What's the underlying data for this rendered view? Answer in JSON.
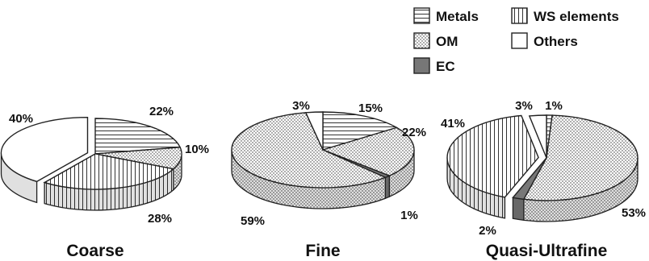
{
  "chart_data": {
    "type": "pie",
    "style": "3d-exploded-grayscale-patterns",
    "legend": {
      "placement": "top-right",
      "entries": [
        {
          "name": "Metals",
          "pattern": "horizontal-lines",
          "color": "#ffffff"
        },
        {
          "name": "WS elements",
          "pattern": "vertical-lines",
          "color": "#ffffff"
        },
        {
          "name": "OM",
          "pattern": "dots",
          "color": "#ffffff"
        },
        {
          "name": "Others",
          "pattern": "none",
          "color": "#ffffff"
        },
        {
          "name": "EC",
          "pattern": "solid",
          "color": "#777777"
        }
      ]
    },
    "charts": [
      {
        "title": "Coarse",
        "slices": [
          {
            "category": "Metals",
            "value": 22,
            "label": "22%"
          },
          {
            "category": "OM",
            "value": 10,
            "label": "10%"
          },
          {
            "category": "WS elements",
            "value": 28,
            "label": "28%"
          },
          {
            "category": "EC",
            "value": 0,
            "label": ""
          },
          {
            "category": "Others",
            "value": 40,
            "label": "40%"
          }
        ]
      },
      {
        "title": "Fine",
        "slices": [
          {
            "category": "Metals",
            "value": 15,
            "label": "15%"
          },
          {
            "category": "OM",
            "value": 22,
            "label": "22%"
          },
          {
            "category": "EC",
            "value": 1,
            "label": "1%"
          },
          {
            "category": "OM",
            "value": 59,
            "label": "59%"
          },
          {
            "category": "Others",
            "value": 3,
            "label": "3%"
          }
        ]
      },
      {
        "title": "Quasi-Ultrafine",
        "slices": [
          {
            "category": "Metals",
            "value": 1,
            "label": "1%"
          },
          {
            "category": "OM",
            "value": 53,
            "label": "53%"
          },
          {
            "category": "EC",
            "value": 2,
            "label": "2%"
          },
          {
            "category": "WS elements",
            "value": 41,
            "label": "41%"
          },
          {
            "category": "Others",
            "value": 3,
            "label": "3%"
          }
        ]
      }
    ]
  }
}
